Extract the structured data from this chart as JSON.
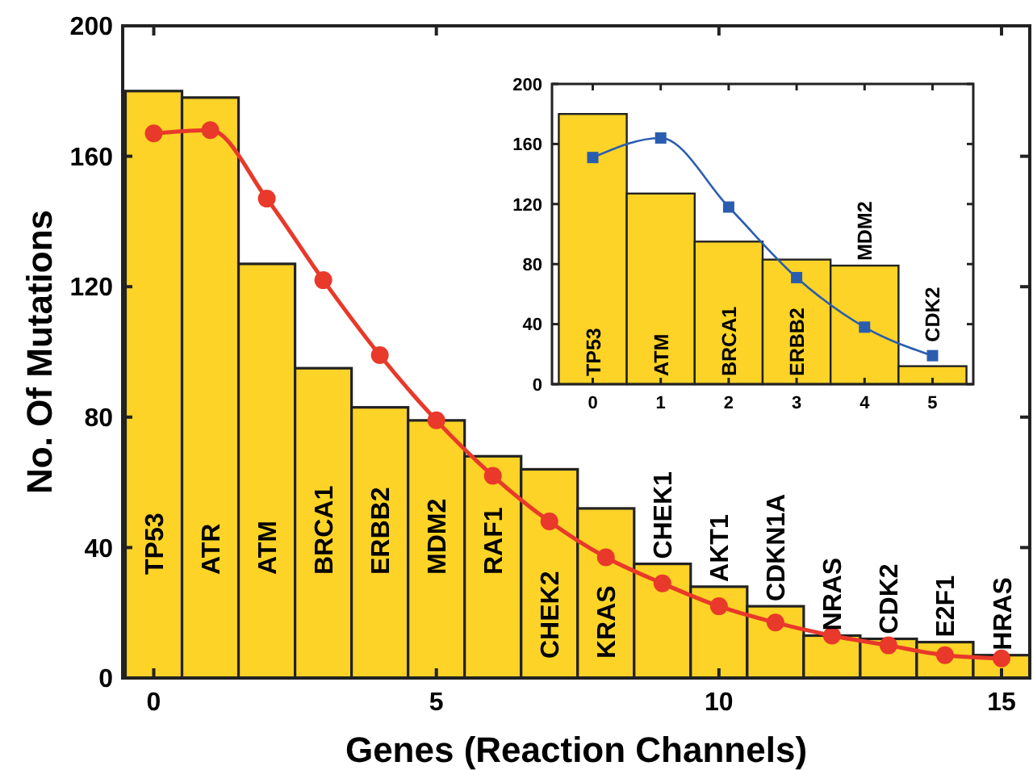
{
  "chart_data": [
    {
      "type": "bar",
      "xlabel": "Genes (Reaction Channels)",
      "ylabel": "No. Of Mutations",
      "x": [
        0,
        1,
        2,
        3,
        4,
        5,
        6,
        7,
        8,
        9,
        10,
        11,
        12,
        13,
        14,
        15
      ],
      "xlim": [
        -0.55,
        15.5
      ],
      "xticks": [
        0,
        5,
        10,
        15
      ],
      "ylim": [
        0,
        200
      ],
      "yticks": [
        0,
        40,
        80,
        120,
        160,
        200
      ],
      "grid": false,
      "line_style": "solid",
      "series": [
        {
          "color": "#fcd326",
          "values": [
            180,
            178,
            127,
            95,
            83,
            79,
            68,
            64,
            52,
            35,
            28,
            22,
            13,
            12,
            11,
            7
          ]
        },
        {
          "type": "line",
          "color": "#e8392a",
          "marker": "circle",
          "values": [
            167,
            168,
            147,
            122,
            99,
            79,
            62,
            48,
            37,
            29,
            22,
            17,
            13,
            10,
            7,
            6
          ]
        }
      ],
      "annotations": [
        "TP53",
        "ATR",
        "ATM",
        "BRCA1",
        "ERBB2",
        "MDM2",
        "RAF1",
        "CHEK2",
        "KRAS",
        "CHEK1",
        "AKT1",
        "CDKN1A",
        "NRAS",
        "CDK2",
        "E2F1",
        "HRAS"
      ]
    },
    {
      "type": "bar",
      "x": [
        0,
        1,
        2,
        3,
        4,
        5
      ],
      "xlim": [
        -0.6,
        5.6
      ],
      "xticks": [
        0,
        1,
        2,
        3,
        4,
        5
      ],
      "ylim": [
        0,
        200
      ],
      "yticks": [
        0,
        40,
        80,
        120,
        160,
        200
      ],
      "grid": false,
      "line_style": "solid",
      "series": [
        {
          "color": "#fcd326",
          "values": [
            180,
            127,
            95,
            83,
            79,
            12
          ]
        },
        {
          "type": "line",
          "color": "#2a5db0",
          "marker": "square",
          "values": [
            151,
            164,
            118,
            71,
            38,
            19
          ]
        }
      ],
      "annotations": [
        "TP53",
        "ATM",
        "BRCA1",
        "ERBB2",
        "MDM2",
        "CDK2"
      ]
    }
  ]
}
